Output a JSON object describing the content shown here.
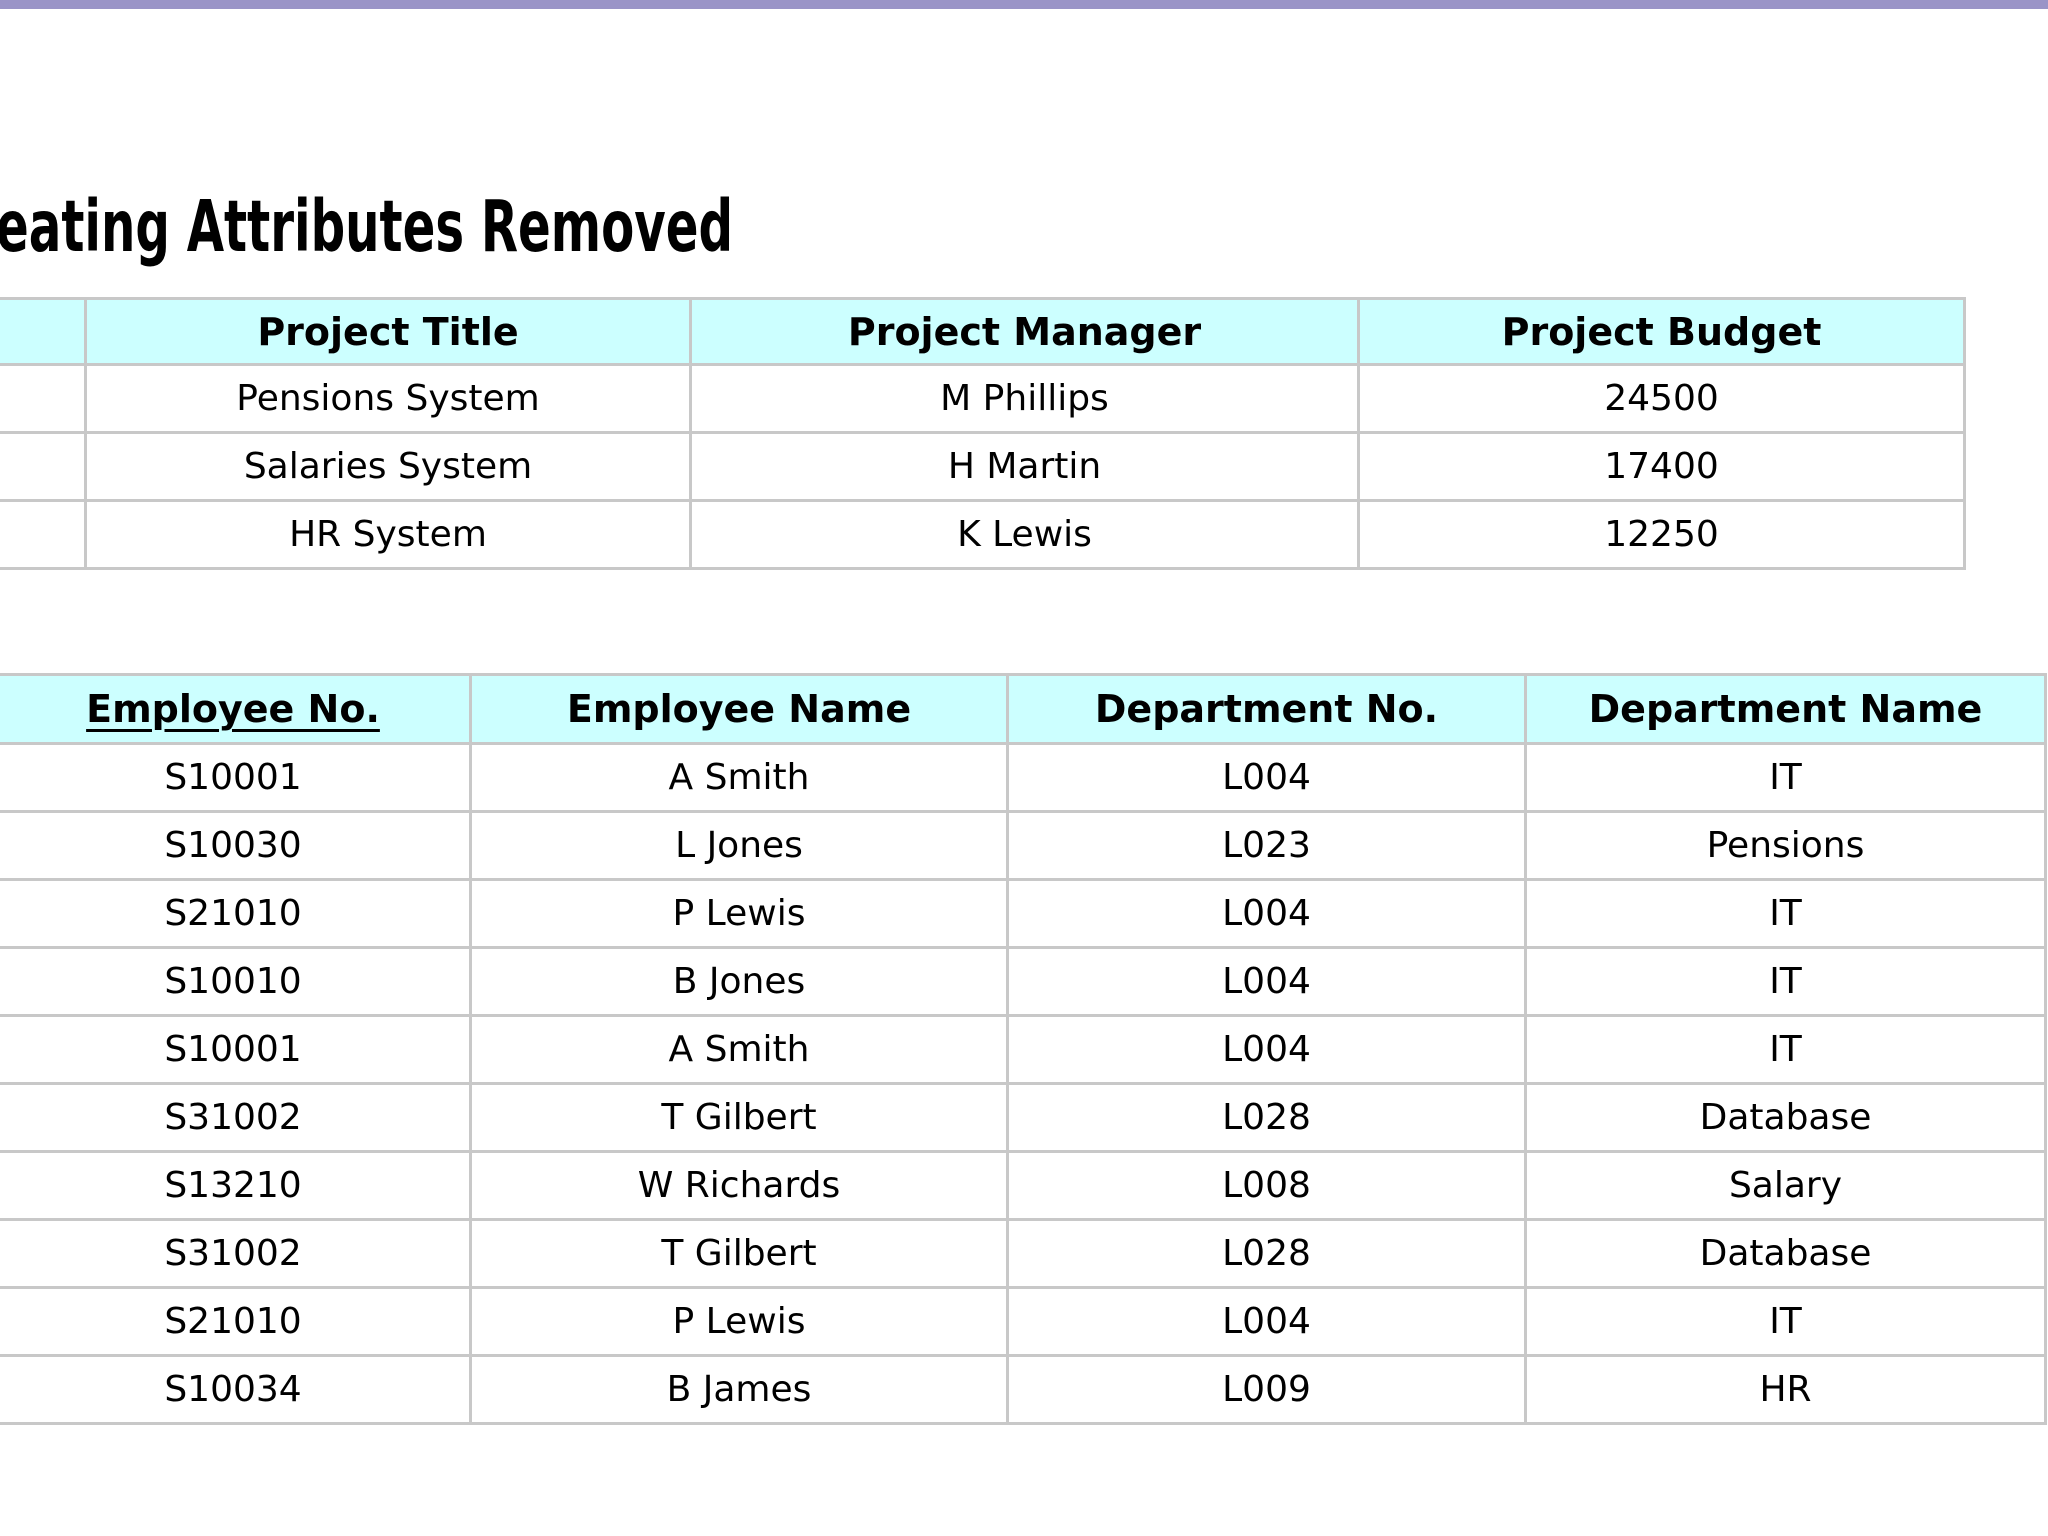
{
  "slide": {
    "title": "eating Attributes Removed"
  },
  "colors": {
    "top_bar": "#9a94c7",
    "table_header_bg": "#ccffff",
    "table_border": "#c8c8c8",
    "text": "#000000",
    "background": "#ffffff"
  },
  "project_table": {
    "headers": [
      "",
      "Project Title",
      "Project Manager",
      "Project Budget"
    ],
    "rows": [
      [
        "",
        "Pensions System",
        "M Phillips",
        "24500"
      ],
      [
        "",
        "Salaries System",
        "H Martin",
        "17400"
      ],
      [
        "",
        "HR System",
        "K Lewis",
        "12250"
      ]
    ]
  },
  "employee_table": {
    "headers": [
      "Employee No.",
      "Employee Name",
      "Department No.",
      "Department Name"
    ],
    "rows": [
      [
        "S10001",
        "A Smith",
        "L004",
        "IT"
      ],
      [
        "S10030",
        "L Jones",
        "L023",
        "Pensions"
      ],
      [
        "S21010",
        "P Lewis",
        "L004",
        "IT"
      ],
      [
        "S10010",
        "B Jones",
        "L004",
        "IT"
      ],
      [
        "S10001",
        "A Smith",
        "L004",
        "IT"
      ],
      [
        "S31002",
        "T Gilbert",
        "L028",
        "Database"
      ],
      [
        "S13210",
        "W Richards",
        "L008",
        "Salary"
      ],
      [
        "S31002",
        "T Gilbert",
        "L028",
        "Database"
      ],
      [
        "S21010",
        "P Lewis",
        "L004",
        "IT"
      ],
      [
        "S10034",
        "B James",
        "L009",
        "HR"
      ]
    ]
  }
}
